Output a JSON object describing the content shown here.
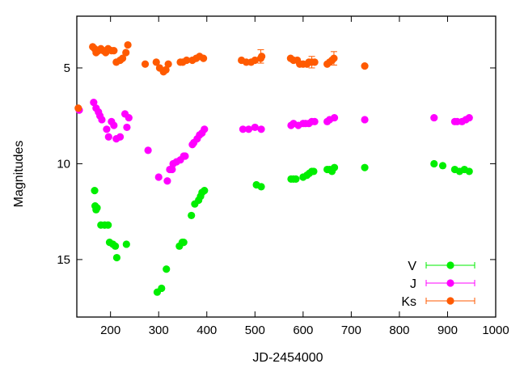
{
  "chart_data": {
    "type": "scatter",
    "xlabel": "JD-2454000",
    "ylabel": "Magnitudes",
    "xlim": [
      130,
      1000
    ],
    "ylim": [
      2.3,
      18.0
    ],
    "y_inverted": true,
    "grid": false,
    "legend_position": "bottom-right",
    "x_ticks": [
      200,
      300,
      400,
      500,
      600,
      700,
      800,
      900,
      1000
    ],
    "y_ticks": [
      5,
      10,
      15
    ],
    "series": [
      {
        "name": "V",
        "color": "#00ee00",
        "points": [
          [
            167,
            11.4
          ],
          [
            168,
            12.2
          ],
          [
            170,
            12.4
          ],
          [
            172,
            12.3
          ],
          [
            180,
            13.2
          ],
          [
            188,
            13.2
          ],
          [
            195,
            13.2
          ],
          [
            198,
            14.1
          ],
          [
            205,
            14.2
          ],
          [
            210,
            14.3
          ],
          [
            213,
            14.9
          ],
          [
            233,
            14.2
          ],
          [
            297,
            16.7
          ],
          [
            306,
            16.5
          ],
          [
            316,
            15.5
          ],
          [
            343,
            14.3
          ],
          [
            349,
            14.1
          ],
          [
            352,
            14.1
          ],
          [
            368,
            12.7
          ],
          [
            375,
            12.1
          ],
          [
            383,
            11.9
          ],
          [
            387,
            11.7
          ],
          [
            390,
            11.5
          ],
          [
            395,
            11.4
          ],
          [
            503,
            11.1
          ],
          [
            513,
            11.2
          ],
          [
            575,
            10.8
          ],
          [
            580,
            10.8
          ],
          [
            585,
            10.8
          ],
          [
            600,
            10.7
          ],
          [
            608,
            10.6
          ],
          [
            613,
            10.5
          ],
          [
            618,
            10.4
          ],
          [
            622,
            10.4
          ],
          [
            650,
            10.3
          ],
          [
            655,
            10.3
          ],
          [
            660,
            10.4
          ],
          [
            665,
            10.2
          ],
          [
            728,
            10.2
          ],
          [
            872,
            10.0
          ],
          [
            890,
            10.1
          ],
          [
            915,
            10.3
          ],
          [
            925,
            10.4
          ],
          [
            935,
            10.3
          ],
          [
            945,
            10.4
          ]
        ]
      },
      {
        "name": "J",
        "color": "#ff00ff",
        "points": [
          [
            135,
            7.2
          ],
          [
            165,
            6.8
          ],
          [
            170,
            7.1
          ],
          [
            175,
            7.3
          ],
          [
            178,
            7.5
          ],
          [
            182,
            7.7
          ],
          [
            192,
            8.2
          ],
          [
            196,
            8.6
          ],
          [
            202,
            7.8
          ],
          [
            207,
            8.0
          ],
          [
            212,
            8.7
          ],
          [
            220,
            8.6
          ],
          [
            230,
            7.4
          ],
          [
            234,
            8.1
          ],
          [
            238,
            7.6
          ],
          [
            278,
            9.3
          ],
          [
            300,
            10.7
          ],
          [
            318,
            10.9
          ],
          [
            323,
            10.3
          ],
          [
            328,
            10.3
          ],
          [
            330,
            10.0
          ],
          [
            337,
            9.9
          ],
          [
            345,
            9.8
          ],
          [
            352,
            9.6
          ],
          [
            355,
            9.6
          ],
          [
            370,
            9.0
          ],
          [
            373,
            8.9
          ],
          [
            380,
            8.7
          ],
          [
            385,
            8.5
          ],
          [
            390,
            8.4
          ],
          [
            395,
            8.2
          ],
          [
            475,
            8.2
          ],
          [
            487,
            8.2
          ],
          [
            500,
            8.1
          ],
          [
            513,
            8.2
          ],
          [
            575,
            8.0
          ],
          [
            580,
            7.9
          ],
          [
            590,
            8.0
          ],
          [
            600,
            7.9
          ],
          [
            605,
            7.9
          ],
          [
            612,
            7.9
          ],
          [
            618,
            7.8
          ],
          [
            624,
            7.8
          ],
          [
            650,
            7.8
          ],
          [
            655,
            7.7
          ],
          [
            665,
            7.6
          ],
          [
            728,
            7.7
          ],
          [
            872,
            7.6
          ],
          [
            915,
            7.8
          ],
          [
            920,
            7.8
          ],
          [
            930,
            7.8
          ],
          [
            938,
            7.7
          ],
          [
            945,
            7.6
          ]
        ]
      },
      {
        "name": "Ks",
        "color": "#ff5a00",
        "points": [
          [
            133,
            7.1
          ],
          [
            163,
            3.9
          ],
          [
            167,
            4.0
          ],
          [
            170,
            4.2
          ],
          [
            175,
            4.1
          ],
          [
            180,
            4.0
          ],
          [
            185,
            4.1
          ],
          [
            190,
            4.2
          ],
          [
            195,
            4.0
          ],
          [
            202,
            4.1
          ],
          [
            207,
            4.1
          ],
          [
            212,
            4.7
          ],
          [
            220,
            4.6
          ],
          [
            225,
            4.5
          ],
          [
            232,
            4.2
          ],
          [
            236,
            3.8
          ],
          [
            272,
            4.8
          ],
          [
            295,
            4.7
          ],
          [
            302,
            5.0
          ],
          [
            310,
            5.2
          ],
          [
            315,
            5.1
          ],
          [
            320,
            4.8
          ],
          [
            345,
            4.7
          ],
          [
            350,
            4.7
          ],
          [
            358,
            4.6
          ],
          [
            370,
            4.6
          ],
          [
            378,
            4.5
          ],
          [
            385,
            4.4
          ],
          [
            393,
            4.5
          ],
          [
            472,
            4.6
          ],
          [
            482,
            4.7
          ],
          [
            492,
            4.7
          ],
          [
            500,
            4.6
          ],
          [
            512,
            4.5
          ],
          [
            514,
            4.4
          ],
          [
            574,
            4.5
          ],
          [
            580,
            4.6
          ],
          [
            588,
            4.6
          ],
          [
            593,
            4.8
          ],
          [
            600,
            4.8
          ],
          [
            608,
            4.8
          ],
          [
            612,
            4.7
          ],
          [
            618,
            4.7
          ],
          [
            624,
            4.7
          ],
          [
            650,
            4.8
          ],
          [
            655,
            4.7
          ],
          [
            660,
            4.6
          ],
          [
            664,
            4.5
          ],
          [
            728,
            4.9
          ]
        ],
        "error_bars": [
          {
            "x": 512,
            "y": 4.4,
            "err": 0.35
          },
          {
            "x": 618,
            "y": 4.7,
            "err": 0.3
          },
          {
            "x": 664,
            "y": 4.5,
            "err": 0.35
          }
        ]
      }
    ]
  }
}
